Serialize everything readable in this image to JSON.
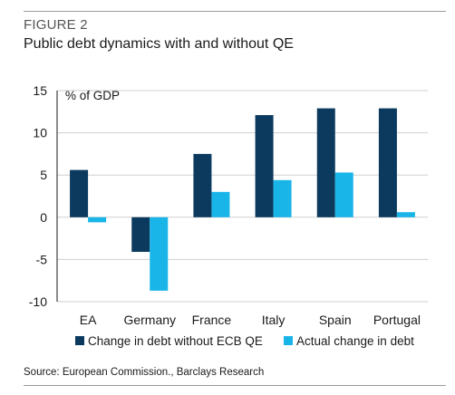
{
  "figure": {
    "label": "FIGURE 2",
    "title": "Public debt dynamics with and without QE",
    "source": "Source: European Commission., Barclays Research"
  },
  "chart_data": {
    "type": "bar",
    "title": "Public debt dynamics with and without QE",
    "ylabel": "% of GDP",
    "xlabel": "",
    "ylim": [
      -10,
      15
    ],
    "yticks": [
      15,
      10,
      5,
      0,
      -5,
      -10
    ],
    "categories": [
      "EA",
      "Germany",
      "France",
      "Italy",
      "Spain",
      "Portugal"
    ],
    "series": [
      {
        "name": "Change in debt without ECB QE",
        "color": "#0b3a5e",
        "values": [
          5.6,
          -4.1,
          7.5,
          12.1,
          12.9,
          12.9
        ]
      },
      {
        "name": "Actual change in debt",
        "color": "#1ab5e8",
        "values": [
          -0.6,
          -8.7,
          3.0,
          4.4,
          5.3,
          0.6
        ]
      }
    ],
    "grid": true,
    "legend_position": "bottom"
  }
}
